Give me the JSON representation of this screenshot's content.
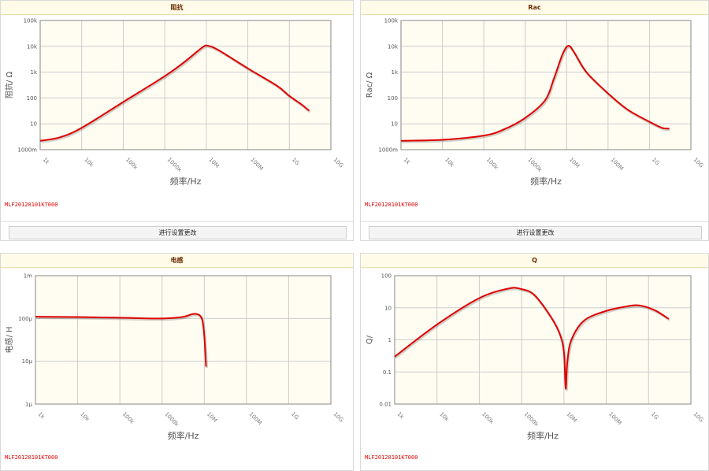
{
  "colors": {
    "curve": "#e00000",
    "plot_bg": "#fffdf2",
    "grid": "#cccccc",
    "header_bg": "#fffbe8"
  },
  "x_ticks": [
    "1k",
    "10k",
    "100k",
    "1000k",
    "10M",
    "100M",
    "1G",
    "10G"
  ],
  "x_label": "频率/Hz",
  "panels": [
    {
      "title": "阻抗",
      "part": "MLF20120101KT000",
      "button": "进行设置更改"
    },
    {
      "title": "Rac",
      "part": "MLF20120101KT000",
      "button": "进行设置更改"
    },
    {
      "title": "电感",
      "part": "MLF20120101KT000"
    },
    {
      "title": "Q",
      "part": "MLF20120101KT000"
    }
  ],
  "chart_data": [
    {
      "type": "line",
      "title": "阻抗",
      "xlabel": "频率/Hz",
      "ylabel": "阻抗/ Ω",
      "xscale": "log",
      "yscale": "log",
      "xlim": [
        1000,
        10000000000
      ],
      "ylim": [
        1,
        100000
      ],
      "y_ticks": [
        "1000m",
        "10",
        "100",
        "1k",
        "10k",
        "100k"
      ],
      "grid": true,
      "series": [
        {
          "x": [
            1000,
            3000,
            10000,
            100000,
            1000000,
            3000000,
            8000000,
            11000000,
            20000000,
            100000000,
            500000000,
            1000000000,
            2000000000,
            3000000000
          ],
          "y": [
            2.2,
            3,
            7,
            70,
            700,
            2500,
            9000,
            10500,
            7000,
            1400,
            300,
            120,
            55,
            32
          ]
        }
      ]
    },
    {
      "type": "line",
      "title": "Rac",
      "xlabel": "频率/Hz",
      "ylabel": "Rac/ Ω",
      "xscale": "log",
      "yscale": "log",
      "xlim": [
        1000,
        10000000000
      ],
      "ylim": [
        1,
        100000
      ],
      "y_ticks": [
        "1000m",
        "10",
        "100",
        "1k",
        "10k",
        "100k"
      ],
      "grid": true,
      "series": [
        {
          "x": [
            1000,
            10000,
            100000,
            300000,
            1000000,
            3000000,
            5000000,
            8000000,
            11000000,
            15000000,
            30000000,
            100000000,
            300000000,
            1000000000,
            2000000000,
            3000000000
          ],
          "y": [
            2.2,
            2.4,
            3.5,
            6,
            17,
            80,
            600,
            5000,
            10500,
            6000,
            1000,
            150,
            35,
            12,
            7,
            6.5
          ]
        }
      ]
    },
    {
      "type": "line",
      "title": "电感",
      "xlabel": "频率/Hz",
      "ylabel": "电感/ H",
      "xscale": "log",
      "yscale": "log",
      "xlim": [
        1000,
        10000000000
      ],
      "ylim": [
        1e-06,
        0.001
      ],
      "y_ticks": [
        "1μ",
        "10μ",
        "100μ",
        "1m"
      ],
      "grid": true,
      "series": [
        {
          "x": [
            1000,
            10000,
            100000,
            1000000,
            3000000,
            5000000,
            6000000,
            7000000,
            8000000,
            9000000,
            10000000,
            11000000
          ],
          "y": [
            0.00011,
            0.000108,
            0.000104,
            0.0001,
            0.000108,
            0.000125,
            0.000128,
            0.000125,
            0.000115,
            9e-05,
            4e-05,
            7.5e-06
          ]
        }
      ]
    },
    {
      "type": "line",
      "title": "Q",
      "xlabel": "频率/Hz",
      "ylabel": "Q/",
      "xscale": "log",
      "yscale": "log",
      "xlim": [
        1000,
        10000000000
      ],
      "ylim": [
        0.01,
        100
      ],
      "y_ticks": [
        "0.01",
        "0.1",
        "1",
        "10",
        "100"
      ],
      "grid": true,
      "series": [
        {
          "x": [
            1000,
            10000,
            100000,
            500000,
            1000000,
            2000000,
            5000000,
            8000000,
            10000000,
            11000000,
            12000000,
            15000000,
            30000000,
            100000000,
            300000000,
            500000000,
            800000000,
            1500000000,
            3000000000
          ],
          "y": [
            0.3,
            3,
            20,
            40,
            38,
            25,
            5,
            1.5,
            0.4,
            0.03,
            0.2,
            1,
            4,
            8,
            11,
            12,
            11,
            8,
            4.5
          ]
        }
      ]
    }
  ]
}
